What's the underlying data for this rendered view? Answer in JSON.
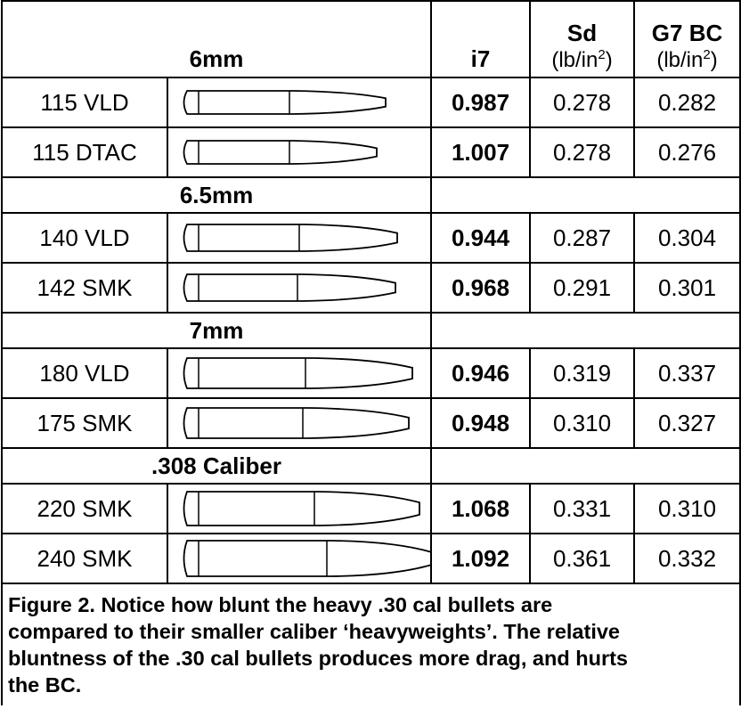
{
  "header": {
    "group": "6mm",
    "i7": "i7",
    "sd": {
      "label": "Sd",
      "unit_before": "(lb/in",
      "unit_sup": "2",
      "unit_after": ")"
    },
    "g7": {
      "label": "G7 BC",
      "unit_before": "(lb/in",
      "unit_sup": "2",
      "unit_after": ")"
    }
  },
  "sections": [
    {
      "title": "6mm",
      "rows": [
        {
          "name": "115 VLD",
          "i7": "0.987",
          "sd": "0.278",
          "g7": "0.282"
        },
        {
          "name": "115 DTAC",
          "i7": "1.007",
          "sd": "0.278",
          "g7": "0.276"
        }
      ]
    },
    {
      "title": "6.5mm",
      "rows": [
        {
          "name": "140 VLD",
          "i7": "0.944",
          "sd": "0.287",
          "g7": "0.304"
        },
        {
          "name": "142 SMK",
          "i7": "0.968",
          "sd": "0.291",
          "g7": "0.301"
        }
      ]
    },
    {
      "title": "7mm",
      "rows": [
        {
          "name": "180 VLD",
          "i7": "0.946",
          "sd": "0.319",
          "g7": "0.337"
        },
        {
          "name": "175 SMK",
          "i7": "0.948",
          "sd": "0.310",
          "g7": "0.327"
        }
      ]
    },
    {
      "title": ".308 Caliber",
      "rows": [
        {
          "name": "220 SMK",
          "i7": "1.068",
          "sd": "0.331",
          "g7": "0.310"
        },
        {
          "name": "240 SMK",
          "i7": "1.092",
          "sd": "0.361",
          "g7": "0.332"
        }
      ]
    }
  ],
  "caption": {
    "lines": [
      "Figure 2.  Notice how blunt the heavy .30 cal bullets are",
      "compared to their smaller caliber ‘heavyweights’.  The relative",
      "bluntness of the .30 cal bullets produces more drag, and hurts",
      "the BC."
    ]
  }
}
